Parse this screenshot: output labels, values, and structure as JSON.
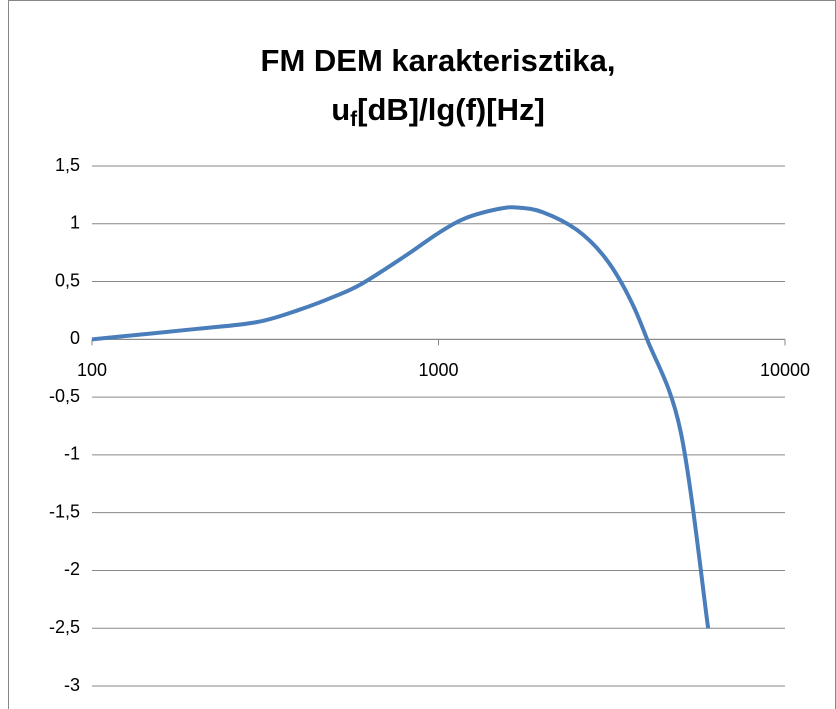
{
  "chart_data": {
    "type": "line",
    "title": "FM DEM karakterisztika,",
    "title_line2": [
      "u",
      "f",
      "[dB]/lg(f)[Hz]"
    ],
    "x": [
      100,
      200,
      300,
      400,
      500,
      600,
      800,
      1000,
      1200,
      1500,
      1700,
      2000,
      2500,
      3000,
      3500,
      4000,
      5000,
      6000
    ],
    "series": [
      {
        "name": "uf",
        "color": "#4a7ebb",
        "values": [
          0,
          0.09,
          0.15,
          0.26,
          0.37,
          0.48,
          0.72,
          0.92,
          1.05,
          1.13,
          1.14,
          1.1,
          0.95,
          0.72,
          0.4,
          0,
          -0.8,
          -2.5
        ]
      }
    ],
    "xlim": [
      100,
      10000
    ],
    "xticks": [
      100,
      1000,
      10000
    ],
    "xscale": "log",
    "ylim": [
      -3,
      1.5
    ],
    "yticks": [
      -3,
      {
        "value": -2.5,
        "label": "-2,5"
      },
      -2,
      {
        "value": -1.5,
        "label": "-1,5"
      },
      -1,
      {
        "value": -0.5,
        "label": "-0,5"
      },
      0,
      {
        "value": 0.5,
        "label": "0,5"
      },
      1,
      {
        "value": 1.5,
        "label": "1,5"
      }
    ],
    "grid": true
  }
}
